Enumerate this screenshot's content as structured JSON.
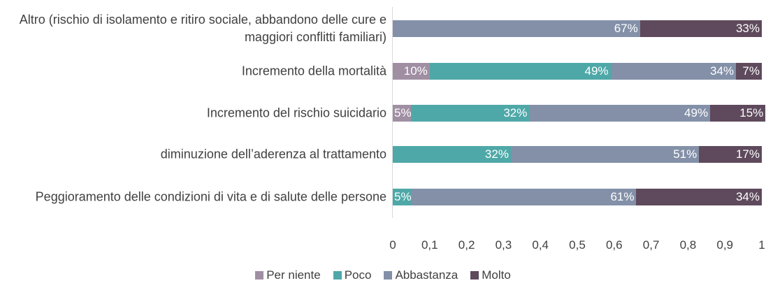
{
  "chart_data": {
    "type": "stacked_barh",
    "categories": [
      "Altro (rischio di isolamento e ritiro sociale, abbandono delle cure e maggiori conflitti familiari)",
      "Incremento della mortalità",
      "Incremento del rischio suicidario",
      "diminuzione dell’aderenza al trattamento",
      "Peggioramento delle condizioni di vita e di salute delle persone"
    ],
    "series": [
      {
        "name": "Per niente",
        "color": "#a08fa3",
        "values": [
          null,
          0.1,
          0.05,
          null,
          null
        ],
        "value_labels": [
          null,
          "10%",
          "5%",
          null,
          null
        ]
      },
      {
        "name": "Poco",
        "color": "#4fa8a8",
        "values": [
          null,
          0.49,
          0.32,
          0.32,
          0.05
        ],
        "value_labels": [
          null,
          "49%",
          "32%",
          "32%",
          "5%"
        ]
      },
      {
        "name": "Abbastanza",
        "color": "#8390a8",
        "values": [
          0.67,
          0.34,
          0.49,
          0.51,
          0.61
        ],
        "value_labels": [
          "67%",
          "34%",
          "49%",
          "51%",
          "61%"
        ]
      },
      {
        "name": "Molto",
        "color": "#5e4a5c",
        "values": [
          0.33,
          0.07,
          0.15,
          0.17,
          0.34
        ],
        "value_labels": [
          "33%",
          "7%",
          "15%",
          "17%",
          "34%"
        ]
      }
    ],
    "xlim": [
      0,
      1
    ],
    "xticks": [
      0,
      {
        "value": 0.1,
        "label": "0,1"
      },
      {
        "value": 0.2,
        "label": "0,2"
      },
      {
        "value": 0.3,
        "label": "0,3"
      },
      {
        "value": 0.4,
        "label": "0,4"
      },
      {
        "value": 0.5,
        "label": "0,5"
      },
      {
        "value": 0.6,
        "label": "0,6"
      },
      {
        "value": 0.7,
        "label": "0,7"
      },
      {
        "value": 0.8,
        "label": "0,8"
      },
      {
        "value": 0.9,
        "label": "0,9"
      },
      1
    ],
    "legend": "bottom"
  }
}
